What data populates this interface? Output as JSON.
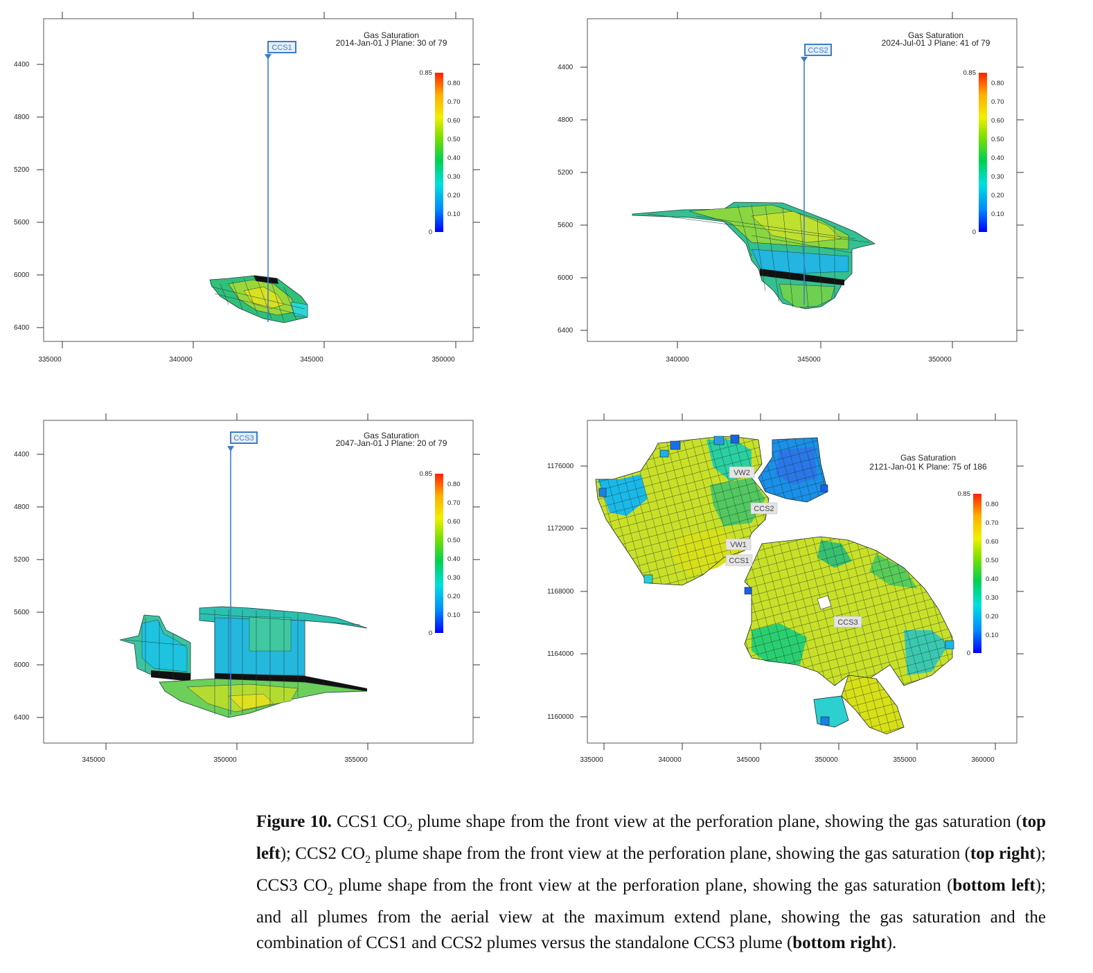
{
  "colorbar": {
    "max_label": "0.85",
    "min_label": "0",
    "ticks": [
      "0.80",
      "0.70",
      "0.60",
      "0.50",
      "0.40",
      "0.30",
      "0.20",
      "0.10"
    ],
    "max": 0.85,
    "min": 0,
    "colormap": [
      "#0000ff",
      "#0088ff",
      "#00e0e0",
      "#00d050",
      "#80e000",
      "#f0f000",
      "#ffb000",
      "#ff3000"
    ]
  },
  "panels": [
    {
      "id": "top-left",
      "title": "Gas Saturation",
      "subtitle": "2014-Jan-01   J Plane: 30 of 79",
      "well": "CCS1",
      "x_ticks": [
        "335000",
        "340000",
        "345000",
        "350000"
      ],
      "y_ticks": [
        "4400",
        "4800",
        "5200",
        "5600",
        "6000",
        "6400"
      ]
    },
    {
      "id": "top-right",
      "title": "Gas Saturation",
      "subtitle": "2024-Jul-01   J Plane: 41 of 79",
      "well": "CCS2",
      "x_ticks": [
        "340000",
        "345000",
        "350000"
      ],
      "y_ticks": [
        "4400",
        "4800",
        "5200",
        "5600",
        "6000",
        "6400"
      ]
    },
    {
      "id": "bottom-left",
      "title": "Gas Saturation",
      "subtitle": "2047-Jan-01   J Plane: 20 of 79",
      "well": "CCS3",
      "x_ticks": [
        "345000",
        "350000",
        "355000"
      ],
      "y_ticks": [
        "4400",
        "4800",
        "5200",
        "5600",
        "6000",
        "6400"
      ]
    },
    {
      "id": "bottom-right",
      "title": "Gas Saturation",
      "subtitle": "2121-Jan-01   K Plane: 75 of 186",
      "wells": [
        "VW2",
        "CCS2",
        "VW1",
        "CCS1",
        "CCS3"
      ],
      "x_ticks": [
        "335000",
        "340000",
        "345000",
        "350000",
        "355000",
        "360000"
      ],
      "y_ticks": [
        "1176000",
        "1172000",
        "1168000",
        "1164000",
        "1160000"
      ]
    }
  ],
  "caption": {
    "label": "Figure 10.",
    "p1": " CCS1 CO",
    "p2": " plume shape from the front view at the perforation plane, showing the gas saturation (",
    "b1": "top left",
    "p3": "); CCS2 CO",
    "p4": " plume shape from the front view at the perforation plane, showing the gas saturation (",
    "b2": "top right",
    "p5": "); CCS3 CO",
    "p6": " plume shape from the front view at the perforation plane, showing the gas saturation (",
    "b3": "bottom left",
    "p7": "); and all plumes from the aerial view at the maximum extend plane, showing the gas saturation and the combination of CCS1 and CCS2 plumes versus the standalone CCS3 plume (",
    "b4": "bottom right",
    "p8": ").",
    "sub": "2"
  }
}
